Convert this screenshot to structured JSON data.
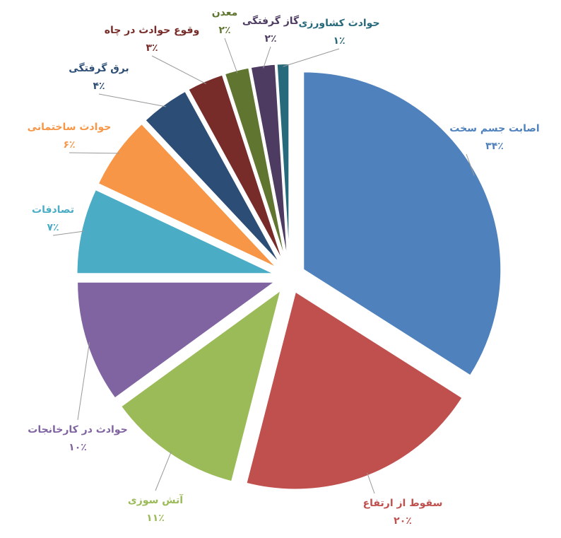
{
  "chart_data": {
    "type": "pie",
    "categories": [
      "اصابت جسم سخت",
      "سقوط از ارتفاع",
      "آتش سوزی",
      "حوادث در کارخانجات",
      "تصادفات",
      "حوادث ساختمانی",
      "برق گرفتگی",
      "وقوع حوادث در چاه",
      "معدن",
      "گاز گرفتگی",
      "حوادث کشاورزی"
    ],
    "values": [
      34,
      20,
      11,
      10,
      7,
      6,
      4,
      3,
      2,
      2,
      1
    ],
    "value_labels": [
      "۳۴٪",
      "۲۰٪",
      "۱۱٪",
      "۱۰٪",
      "۷٪",
      "۶٪",
      "۴٪",
      "۳٪",
      "۲٪",
      "۲٪",
      "۱٪"
    ],
    "colors": [
      "#4f81bd",
      "#c0504d",
      "#9bbb59",
      "#8064a2",
      "#4bacc6",
      "#f79646",
      "#2c4d75",
      "#772c2a",
      "#5f7530",
      "#4d3b62",
      "#276a7c"
    ]
  }
}
